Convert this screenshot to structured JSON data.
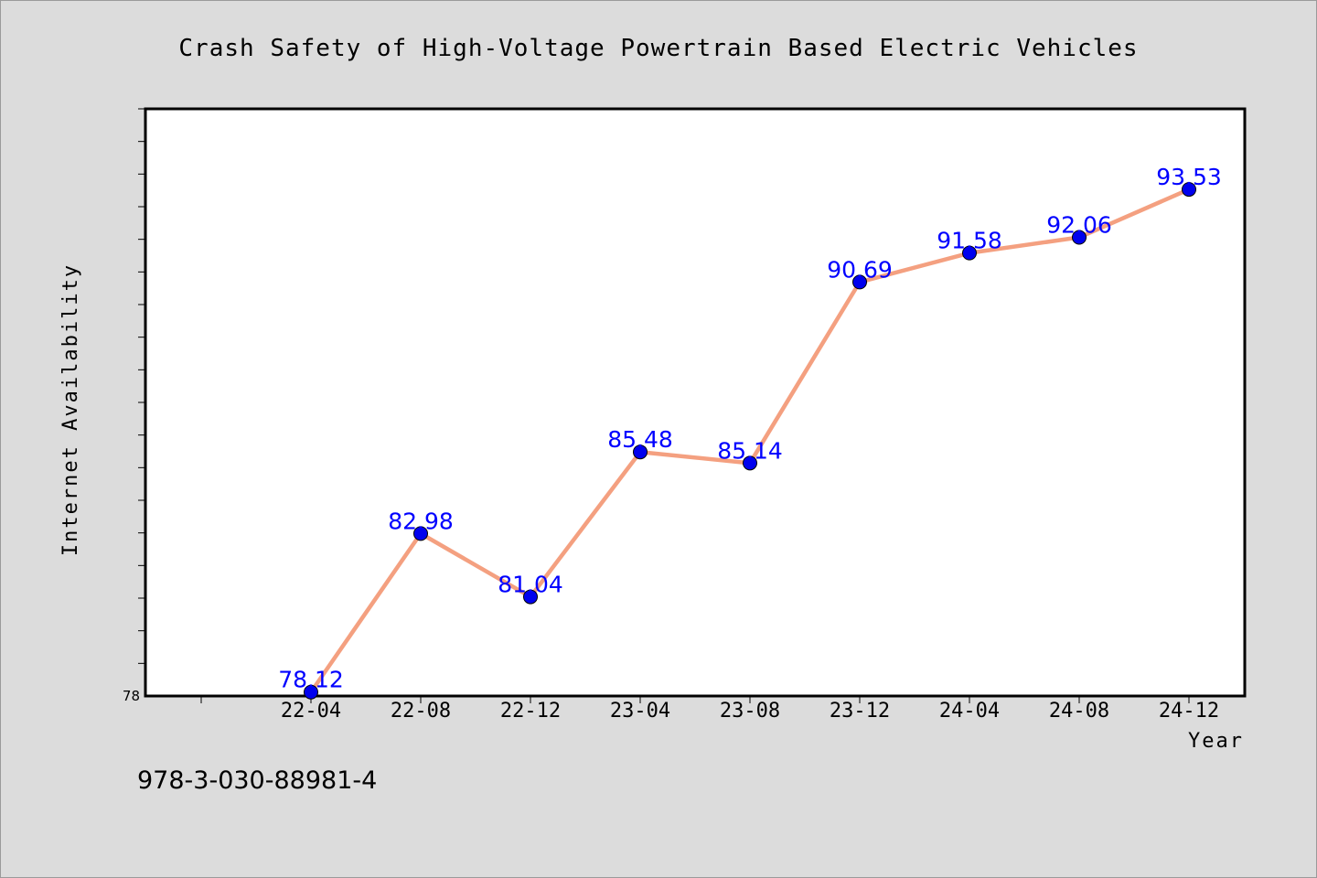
{
  "chart_data": {
    "type": "line",
    "title": "Crash Safety of High-Voltage Powertrain Based Electric Vehicles",
    "xlabel": "Year",
    "ylabel": "Internet Availability",
    "categories": [
      "22-04",
      "22-08",
      "22-12",
      "23-04",
      "23-08",
      "23-12",
      "24-04",
      "24-08",
      "24-12"
    ],
    "series": [
      {
        "values": [
          78.12,
          82.98,
          81.04,
          85.48,
          85.14,
          90.69,
          91.58,
          92.06,
          93.53
        ],
        "labels": [
          "78.12",
          "82.98",
          "81.04",
          "85.48",
          "85.14",
          "90.69",
          "91.58",
          "92.06",
          "93.53"
        ]
      }
    ],
    "ylim": [
      78,
      96
    ],
    "yticks_labeled": [
      "78"
    ],
    "grid": false,
    "legend": "none",
    "colors": {
      "line": "#f4a080",
      "marker": "#0000ee",
      "labels": "#0000ff"
    }
  },
  "footnote": "978-3-030-88981-4"
}
